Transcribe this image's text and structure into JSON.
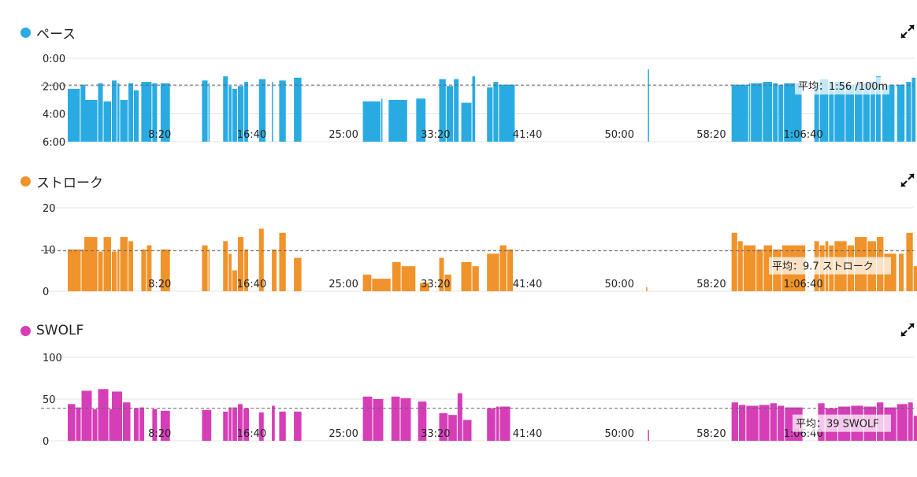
{
  "colors": {
    "pace": "#29abe2",
    "stroke": "#f0932b",
    "swolf": "#d63eb8",
    "grid": "#e4e4e4",
    "avg_line": "#666666"
  },
  "expand_icon": "expand-arrows-icon",
  "chart_data": [
    {
      "type": "bar",
      "title": "ペース",
      "y_ticks": [
        "0:00",
        "2:00",
        "4:00",
        "6:00"
      ],
      "ylim": [
        0,
        6
      ],
      "y_inverted": true,
      "y_unit": "minutes per 100m",
      "x_ticks": [
        "8:20",
        "16:40",
        "25:00",
        "33:20",
        "41:40",
        "50:00",
        "58:20",
        "1:06:40"
      ],
      "x_range_seconds": [
        0,
        4500
      ],
      "average": 1.93,
      "average_label": "平均：1:56 /100m",
      "bars": [
        [
          0,
          70,
          2.2
        ],
        [
          70,
          30,
          1.9
        ],
        [
          90,
          75,
          3.0
        ],
        [
          165,
          30,
          1.8
        ],
        [
          195,
          45,
          3.1
        ],
        [
          240,
          30,
          1.6
        ],
        [
          270,
          15,
          1.8
        ],
        [
          285,
          45,
          3.0
        ],
        [
          330,
          30,
          1.8
        ],
        [
          360,
          30,
          2.3
        ],
        [
          400,
          60,
          1.7
        ],
        [
          460,
          30,
          1.8
        ],
        [
          505,
          55,
          1.8
        ],
        [
          730,
          35,
          1.6
        ],
        [
          765,
          10,
          1.8
        ],
        [
          845,
          30,
          1.3
        ],
        [
          875,
          20,
          2.0
        ],
        [
          895,
          30,
          2.2
        ],
        [
          925,
          35,
          2.0
        ],
        [
          960,
          25,
          1.7
        ],
        [
          1040,
          40,
          1.5
        ],
        [
          1110,
          10,
          1.7
        ],
        [
          1150,
          40,
          1.6
        ],
        [
          1230,
          45,
          1.4
        ],
        [
          1605,
          100,
          3.1
        ],
        [
          1705,
          5,
          2.9
        ],
        [
          1745,
          105,
          3.0
        ],
        [
          1895,
          55,
          2.9
        ],
        [
          2020,
          40,
          1.5
        ],
        [
          2060,
          40,
          2.0
        ],
        [
          2100,
          30,
          1.5
        ],
        [
          2140,
          60,
          3.2
        ],
        [
          2200,
          20,
          1.3
        ],
        [
          2280,
          35,
          2.1
        ],
        [
          2315,
          30,
          1.7
        ],
        [
          2345,
          90,
          1.9
        ],
        [
          3155,
          5,
          0.8
        ],
        [
          3610,
          95,
          1.9
        ],
        [
          3705,
          10,
          1.8
        ],
        [
          3715,
          65,
          1.8
        ],
        [
          3780,
          55,
          1.7
        ],
        [
          3835,
          30,
          1.8
        ],
        [
          3865,
          30,
          1.9
        ],
        [
          3895,
          100,
          1.8
        ],
        [
          4060,
          30,
          1.7
        ],
        [
          4090,
          50,
          1.5
        ],
        [
          4140,
          30,
          1.8
        ],
        [
          4170,
          60,
          1.7
        ],
        [
          4230,
          50,
          1.9
        ],
        [
          4280,
          45,
          1.8
        ],
        [
          4325,
          40,
          1.8
        ],
        [
          4365,
          30,
          1.7
        ],
        [
          4395,
          30,
          1.3
        ],
        [
          4430,
          70,
          1.9
        ],
        [
          4510,
          45,
          1.9
        ],
        [
          4560,
          30,
          1.7
        ],
        [
          4590,
          25,
          1.4
        ]
      ]
    },
    {
      "type": "bar",
      "title": "ストローク",
      "y_ticks": [
        "20",
        "10",
        "0"
      ],
      "ylim": [
        0,
        20
      ],
      "x_ticks": [
        "8:20",
        "16:40",
        "25:00",
        "33:20",
        "41:40",
        "50:00",
        "58:20",
        "1:06:40"
      ],
      "x_range_seconds": [
        0,
        4500
      ],
      "average": 9.7,
      "average_label": "平均：9.7 ストローク",
      "bars": [
        [
          0,
          75,
          10
        ],
        [
          75,
          30,
          10
        ],
        [
          90,
          75,
          13
        ],
        [
          165,
          30,
          9.5
        ],
        [
          195,
          45,
          13
        ],
        [
          240,
          30,
          9.5
        ],
        [
          270,
          15,
          10
        ],
        [
          285,
          45,
          13
        ],
        [
          330,
          30,
          12
        ],
        [
          400,
          30,
          10
        ],
        [
          430,
          30,
          11
        ],
        [
          505,
          55,
          10
        ],
        [
          730,
          35,
          11
        ],
        [
          765,
          10,
          10
        ],
        [
          845,
          30,
          12
        ],
        [
          875,
          20,
          9
        ],
        [
          895,
          30,
          5
        ],
        [
          925,
          35,
          13
        ],
        [
          960,
          25,
          10
        ],
        [
          1040,
          30,
          15
        ],
        [
          1110,
          30,
          10
        ],
        [
          1150,
          40,
          14
        ],
        [
          1230,
          45,
          8
        ],
        [
          1605,
          50,
          4
        ],
        [
          1655,
          105,
          3
        ],
        [
          1765,
          50,
          7
        ],
        [
          1815,
          80,
          6
        ],
        [
          1915,
          55,
          2
        ],
        [
          2020,
          30,
          8
        ],
        [
          2050,
          40,
          4
        ],
        [
          2140,
          60,
          7
        ],
        [
          2200,
          40,
          6
        ],
        [
          2280,
          70,
          9
        ],
        [
          2350,
          40,
          11
        ],
        [
          2390,
          35,
          10
        ],
        [
          3145,
          10,
          1
        ],
        [
          3610,
          35,
          14
        ],
        [
          3645,
          30,
          12
        ],
        [
          3675,
          70,
          11
        ],
        [
          3745,
          40,
          10
        ],
        [
          3785,
          50,
          11
        ],
        [
          3835,
          50,
          10
        ],
        [
          3885,
          130,
          11
        ],
        [
          4060,
          30,
          12
        ],
        [
          4090,
          30,
          11
        ],
        [
          4120,
          20,
          12
        ],
        [
          4140,
          30,
          11
        ],
        [
          4170,
          70,
          12
        ],
        [
          4240,
          40,
          11
        ],
        [
          4280,
          70,
          13
        ],
        [
          4350,
          50,
          12
        ],
        [
          4400,
          40,
          13
        ],
        [
          4440,
          70,
          9
        ],
        [
          4520,
          30,
          9
        ],
        [
          4560,
          40,
          14
        ],
        [
          4600,
          40,
          6
        ]
      ]
    },
    {
      "type": "bar",
      "title": "SWOLF",
      "y_ticks": [
        "100",
        "50",
        "0"
      ],
      "ylim": [
        0,
        100
      ],
      "x_ticks": [
        "8:20",
        "16:40",
        "25:00",
        "33:20",
        "41:40",
        "50:00",
        "58:20",
        "1:06:40"
      ],
      "x_range_seconds": [
        0,
        4500
      ],
      "average": 39,
      "average_label": "平均：39 SWOLF",
      "bars": [
        [
          0,
          45,
          44
        ],
        [
          45,
          30,
          40
        ],
        [
          75,
          60,
          60
        ],
        [
          135,
          30,
          38
        ],
        [
          165,
          60,
          62
        ],
        [
          225,
          30,
          38
        ],
        [
          240,
          60,
          59
        ],
        [
          300,
          45,
          46
        ],
        [
          360,
          30,
          39
        ],
        [
          390,
          30,
          40
        ],
        [
          460,
          30,
          38
        ],
        [
          505,
          55,
          36
        ],
        [
          730,
          55,
          37
        ],
        [
          845,
          30,
          35
        ],
        [
          875,
          20,
          40
        ],
        [
          895,
          30,
          40
        ],
        [
          925,
          30,
          44
        ],
        [
          955,
          35,
          39
        ],
        [
          1040,
          30,
          34
        ],
        [
          1110,
          20,
          42
        ],
        [
          1150,
          40,
          35
        ],
        [
          1230,
          45,
          35
        ],
        [
          1605,
          55,
          53
        ],
        [
          1660,
          60,
          50
        ],
        [
          1760,
          50,
          53
        ],
        [
          1810,
          60,
          51
        ],
        [
          1905,
          50,
          47
        ],
        [
          2020,
          50,
          33
        ],
        [
          2070,
          50,
          31
        ],
        [
          2120,
          30,
          57
        ],
        [
          2150,
          50,
          25
        ],
        [
          2280,
          50,
          39
        ],
        [
          2330,
          20,
          41
        ],
        [
          2350,
          60,
          41
        ],
        [
          3155,
          10,
          13
        ],
        [
          3610,
          40,
          46
        ],
        [
          3650,
          40,
          43
        ],
        [
          3690,
          70,
          42
        ],
        [
          3760,
          60,
          43
        ],
        [
          3820,
          40,
          45
        ],
        [
          3860,
          40,
          42
        ],
        [
          3900,
          100,
          40
        ],
        [
          4080,
          40,
          45
        ],
        [
          4120,
          70,
          39
        ],
        [
          4190,
          70,
          41
        ],
        [
          4260,
          70,
          42
        ],
        [
          4330,
          70,
          41
        ],
        [
          4400,
          40,
          46
        ],
        [
          4440,
          70,
          40
        ],
        [
          4510,
          60,
          44
        ],
        [
          4570,
          30,
          46
        ],
        [
          4600,
          40,
          30
        ],
        [
          4620,
          20,
          25
        ]
      ]
    }
  ]
}
